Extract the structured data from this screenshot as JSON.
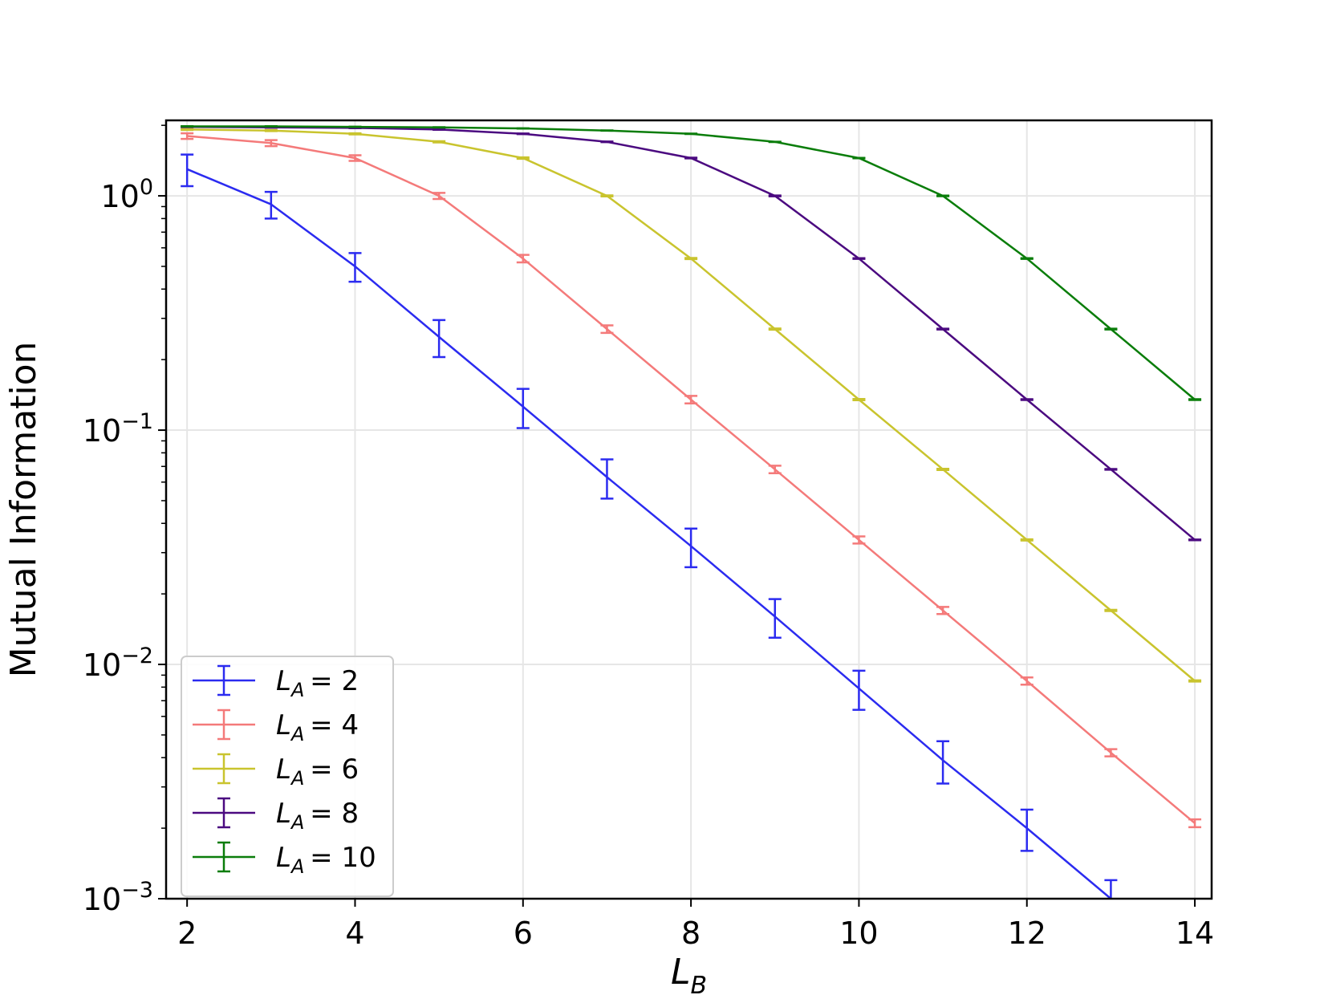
{
  "chart_data": {
    "type": "line",
    "error_bars": true,
    "xlabel": "L",
    "xlabel_sub": "B",
    "ylabel": "Mutual Information",
    "xlim": [
      1.75,
      14.2
    ],
    "ylim": [
      0.001,
      2.1
    ],
    "yscale": "log",
    "grid": true,
    "legend_position": "lower-left",
    "x": [
      2,
      3,
      4,
      5,
      6,
      7,
      8,
      9,
      10,
      11,
      12,
      13,
      14
    ],
    "x_ticks": [
      {
        "value": 2,
        "label": "2"
      },
      {
        "value": 4,
        "label": "4"
      },
      {
        "value": 6,
        "label": "6"
      },
      {
        "value": 8,
        "label": "8"
      },
      {
        "value": 10,
        "label": "10"
      },
      {
        "value": 12,
        "label": "12"
      },
      {
        "value": 14,
        "label": "14"
      }
    ],
    "y_ticks": [
      {
        "value": 1,
        "base": "10",
        "exp": "0"
      },
      {
        "value": 0.1,
        "base": "10",
        "exp": "−1"
      },
      {
        "value": 0.01,
        "base": "10",
        "exp": "−2"
      },
      {
        "value": 0.001,
        "base": "10",
        "exp": "−3"
      }
    ],
    "series": [
      {
        "name": "L_A = 2",
        "legend": {
          "var": "L",
          "sub": "A",
          "eq": "= 2"
        },
        "color": "#2b2bf0",
        "x": [
          2,
          3,
          4,
          5,
          6,
          7,
          8,
          9,
          10,
          11,
          12,
          13
        ],
        "values": [
          1.3,
          0.92,
          0.5,
          0.25,
          0.126,
          0.063,
          0.032,
          0.016,
          0.0079,
          0.0039,
          0.002,
          0.001
        ],
        "errors": [
          0.2,
          0.12,
          0.07,
          0.045,
          0.024,
          0.012,
          0.006,
          0.003,
          0.0015,
          0.0008,
          0.0004,
          0.0002
        ]
      },
      {
        "name": "L_A = 4",
        "legend": {
          "var": "L",
          "sub": "A",
          "eq": "= 4"
        },
        "color": "#f47a7a",
        "x": [
          2,
          3,
          4,
          5,
          6,
          7,
          8,
          9,
          10,
          11,
          12,
          13,
          14
        ],
        "values": [
          1.8,
          1.68,
          1.45,
          1.0,
          0.54,
          0.27,
          0.135,
          0.068,
          0.034,
          0.017,
          0.0085,
          0.0042,
          0.0021
        ],
        "errors": [
          0.05,
          0.05,
          0.04,
          0.03,
          0.02,
          0.01,
          0.005,
          0.0025,
          0.0012,
          0.0006,
          0.0003,
          0.00015,
          8e-05
        ]
      },
      {
        "name": "L_A = 6",
        "legend": {
          "var": "L",
          "sub": "A",
          "eq": "= 6"
        },
        "color": "#c9c42e",
        "x": [
          2,
          3,
          4,
          5,
          6,
          7,
          8,
          9,
          10,
          11,
          12,
          13,
          14
        ],
        "values": [
          1.92,
          1.9,
          1.84,
          1.7,
          1.45,
          1.0,
          0.54,
          0.27,
          0.135,
          0.068,
          0.034,
          0.017,
          0.0085
        ],
        "errors": [
          0.01,
          0.01,
          0.01,
          0.01,
          0.01,
          0.005,
          0.003,
          0.0015,
          0.0008,
          0.0004,
          0.0002,
          0.0001,
          5e-05
        ]
      },
      {
        "name": "L_A = 8",
        "legend": {
          "var": "L",
          "sub": "A",
          "eq": "= 8"
        },
        "color": "#4b0a80",
        "x": [
          2,
          3,
          4,
          5,
          6,
          7,
          8,
          9,
          10,
          11,
          12,
          13,
          14
        ],
        "values": [
          1.97,
          1.96,
          1.95,
          1.92,
          1.84,
          1.7,
          1.45,
          1.0,
          0.54,
          0.27,
          0.135,
          0.068,
          0.034
        ],
        "errors": [
          0.005,
          0.005,
          0.005,
          0.005,
          0.005,
          0.005,
          0.005,
          0.004,
          0.002,
          0.001,
          0.0005,
          0.00025,
          0.00012
        ]
      },
      {
        "name": "L_A = 10",
        "legend": {
          "var": "L",
          "sub": "A",
          "eq": "= 10"
        },
        "color": "#0a7d0a",
        "x": [
          2,
          3,
          4,
          5,
          6,
          7,
          8,
          9,
          10,
          11,
          12,
          13,
          14
        ],
        "values": [
          1.98,
          1.98,
          1.97,
          1.96,
          1.94,
          1.9,
          1.84,
          1.7,
          1.45,
          1.0,
          0.54,
          0.27,
          0.135
        ],
        "errors": [
          0.003,
          0.003,
          0.003,
          0.003,
          0.003,
          0.003,
          0.003,
          0.003,
          0.003,
          0.003,
          0.002,
          0.001,
          0.0005
        ]
      }
    ]
  }
}
